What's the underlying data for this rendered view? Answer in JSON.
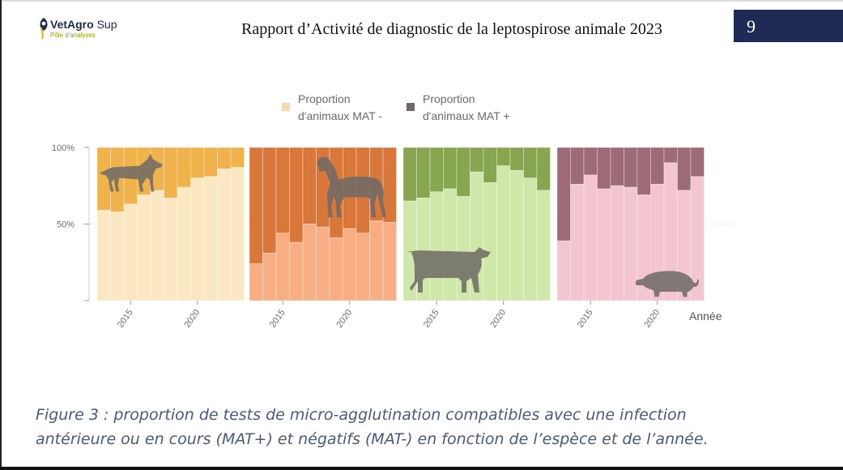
{
  "header": {
    "logo_name": "VetAgro",
    "logo_name2": "Sup",
    "logo_sub": "Pôle d'analyses",
    "report_title": "Rapport d’Activité de diagnostic de la leptospirose animale 2023",
    "page_number": "9"
  },
  "caption": {
    "line1": "Figure 3 : proportion de tests de micro-agglutination compatibles avec une infection",
    "line2": "antérieure ou en cours (MAT+) et négatifs (MAT-) en fonction de l’espèce et de l’année."
  },
  "colors": {
    "dog": "#f0b24a",
    "dog_light": "#fbe7c2",
    "horse": "#d9773a",
    "horse_light": "#f8ae82",
    "cow": "#88a64f",
    "cow_light": "#cfe7a8",
    "pig": "#9d6b78",
    "pig_light": "#f3c5d1",
    "legend_light": "#f1dbb5",
    "legend_dark": "#6f6866",
    "silhouette": "#6e6a66"
  },
  "chart_data": {
    "type": "bar",
    "stacked": true,
    "percent": true,
    "y_ticks": [
      "100%",
      "50%"
    ],
    "xlabel": "Année",
    "x_tick_labels": [
      "2015",
      "2020"
    ],
    "legend": [
      {
        "label_line1": "Proportion",
        "label_line2": "d'animaux MAT -",
        "color_key": "legend_light"
      },
      {
        "label_line1": "Proportion",
        "label_line2": "d'animaux MAT +",
        "color_key": "legend_dark"
      }
    ],
    "years": [
      2013,
      2014,
      2015,
      2016,
      2017,
      2018,
      2019,
      2020,
      2021,
      2022,
      2023
    ],
    "panels": [
      {
        "species": "dog",
        "mat_minus": [
          59,
          58,
          63,
          69,
          72,
          67,
          74,
          80,
          81,
          86,
          87
        ],
        "icon": "dog-icon"
      },
      {
        "species": "horse",
        "mat_minus": [
          24,
          31,
          44,
          38,
          50,
          48,
          41,
          47,
          44,
          52,
          51
        ],
        "icon": "horse-icon"
      },
      {
        "species": "cow",
        "mat_minus": [
          65,
          67,
          71,
          73,
          68,
          84,
          77,
          88,
          85,
          80,
          72
        ],
        "icon": "cow-icon"
      },
      {
        "species": "pig",
        "mat_minus": [
          39,
          76,
          82,
          73,
          75,
          74,
          69,
          76,
          90,
          72,
          81
        ],
        "icon": "pig-icon"
      }
    ]
  }
}
